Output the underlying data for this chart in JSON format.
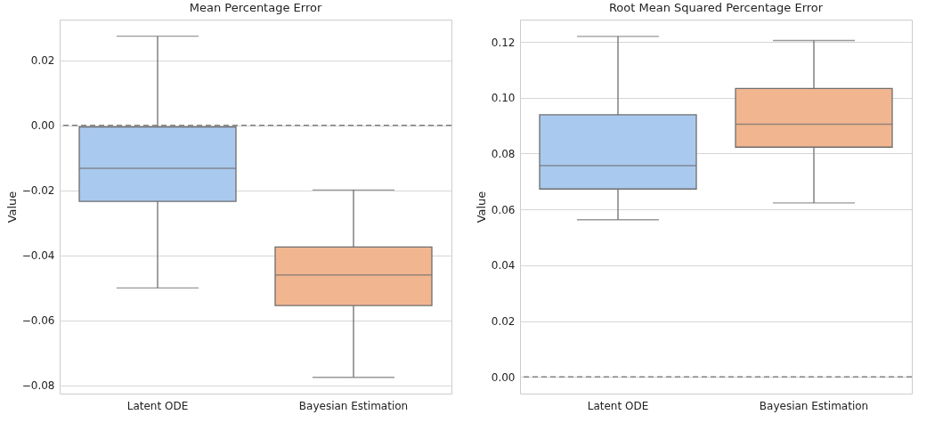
{
  "chart_data": [
    {
      "type": "box",
      "title": "Mean Percentage Error",
      "ylabel": "Value",
      "categories": [
        "Latent ODE",
        "Bayesian Estimation"
      ],
      "colors": [
        "#aac9ee",
        "#f1b690"
      ],
      "boxes": [
        {
          "low": -0.05,
          "q1": -0.0234,
          "median": -0.0132,
          "q3": -0.0005,
          "high": 0.0274
        },
        {
          "low": -0.0775,
          "q1": -0.0554,
          "median": -0.046,
          "q3": -0.0374,
          "high": -0.0199
        }
      ],
      "ylim": [
        -0.0825,
        0.0325
      ],
      "yticks": [
        {
          "value": -0.08,
          "label": "−0.08"
        },
        {
          "value": -0.06,
          "label": "−0.06"
        },
        {
          "value": -0.04,
          "label": "−0.04"
        },
        {
          "value": -0.02,
          "label": "−0.02"
        },
        {
          "value": 0,
          "label": "0.00"
        },
        {
          "value": 0.02,
          "label": "0.02"
        }
      ],
      "grid": "y",
      "ref_lines": [
        {
          "axis": "y",
          "value": 0,
          "color": "#808080",
          "line_style": "dashed"
        }
      ]
    },
    {
      "type": "box",
      "title": "Root Mean Squared Percentage Error",
      "ylabel": "Value",
      "categories": [
        "Latent ODE",
        "Bayesian Estimation"
      ],
      "colors": [
        "#aac9ee",
        "#f1b690"
      ],
      "boxes": [
        {
          "low": 0.0563,
          "q1": 0.0673,
          "median": 0.0757,
          "q3": 0.0939,
          "high": 0.122
        },
        {
          "low": 0.0623,
          "q1": 0.0823,
          "median": 0.0905,
          "q3": 0.1033,
          "high": 0.1205
        }
      ],
      "ylim": [
        -0.006,
        0.128
      ],
      "yticks": [
        {
          "value": 0,
          "label": "0.00"
        },
        {
          "value": 0.02,
          "label": "0.02"
        },
        {
          "value": 0.04,
          "label": "0.04"
        },
        {
          "value": 0.06,
          "label": "0.06"
        },
        {
          "value": 0.08,
          "label": "0.08"
        },
        {
          "value": 0.1,
          "label": "0.10"
        },
        {
          "value": 0.12,
          "label": "0.12"
        }
      ],
      "grid": "y",
      "ref_lines": [
        {
          "axis": "y",
          "value": 0,
          "color": "#808080",
          "line_style": "dashed"
        }
      ]
    }
  ]
}
